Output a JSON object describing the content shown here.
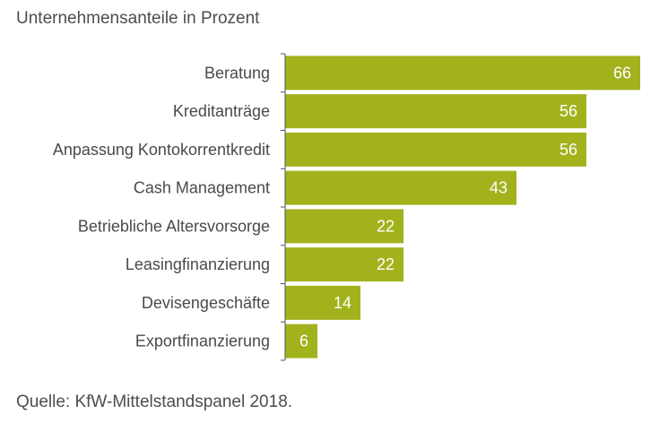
{
  "chart_data": {
    "type": "bar",
    "orientation": "horizontal",
    "title": "",
    "subtitle": "Unternehmensanteile in Prozent",
    "xlabel": "",
    "ylabel": "",
    "xlim": [
      0,
      66
    ],
    "grid": false,
    "data_labels": true,
    "bar_color": "#a2b21d",
    "label_color": "#ffffff",
    "categories": [
      "Beratung",
      "Kreditanträge",
      "Anpassung Kontokorrentkredit",
      "Cash Management",
      "Betriebliche Altersvorsorge",
      "Leasingfinanzierung",
      "Devisengeschäfte",
      "Exportfinanzierung"
    ],
    "values": [
      66,
      56,
      56,
      43,
      22,
      22,
      14,
      6
    ]
  },
  "source": "Quelle: KfW-Mittelstandspanel 2018."
}
